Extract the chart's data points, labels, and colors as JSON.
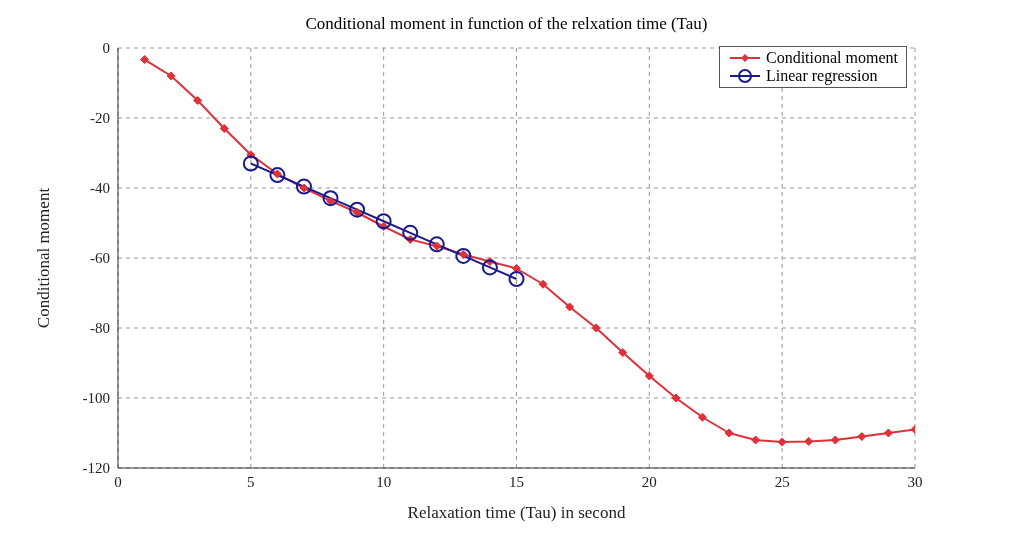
{
  "chart_data": {
    "type": "line",
    "title": "Conditional moment in function of the relxation time (Tau)",
    "xlabel": "Relaxation time (Tau) in second",
    "ylabel": "Conditional moment",
    "xlim": [
      0,
      30
    ],
    "xticks": [
      0,
      5,
      10,
      15,
      20,
      25,
      30
    ],
    "ylim": [
      -120,
      0
    ],
    "yticks": [
      -120,
      -100,
      -80,
      -60,
      -40,
      -20,
      0
    ],
    "grid": true,
    "legend": "top right",
    "series": [
      {
        "name": "Conditional moment",
        "color": "#e0303a",
        "marker": "diamond",
        "x": [
          1,
          2,
          3,
          4,
          5,
          6,
          7,
          8,
          9,
          10,
          11,
          12,
          13,
          14,
          15,
          16,
          17,
          18,
          19,
          20,
          21,
          22,
          23,
          24,
          25,
          26,
          27,
          28,
          29,
          30
        ],
        "values": [
          -3.3,
          -8,
          -15,
          -23,
          -30.5,
          -36,
          -40,
          -43.7,
          -47,
          -51,
          -54.7,
          -56.6,
          -59,
          -61,
          -63,
          -67.5,
          -74,
          -80,
          -87,
          -93.7,
          -100,
          -105.5,
          -110,
          -112,
          -112.6,
          -112.4,
          -112,
          -111,
          -110,
          -109
        ]
      },
      {
        "name": "Linear regression",
        "color": "#1a1a8c",
        "marker": "circle",
        "x": [
          5,
          6,
          7,
          8,
          9,
          10,
          11,
          12,
          13,
          14,
          15
        ],
        "values": [
          -33,
          -36.3,
          -39.6,
          -42.9,
          -46.2,
          -49.5,
          -52.8,
          -56.1,
          -59.4,
          -62.7,
          -66
        ]
      }
    ]
  }
}
